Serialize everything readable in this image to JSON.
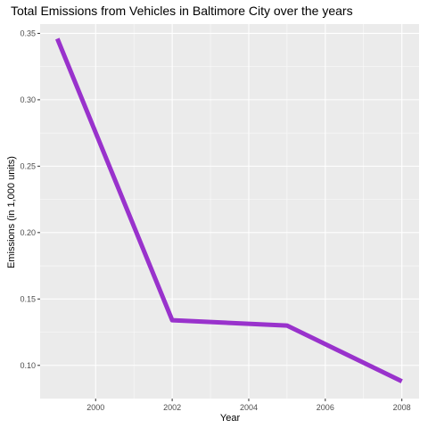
{
  "chart_data": {
    "type": "line",
    "title": "Total Emissions from Vehicles in Baltimore City over the years",
    "xlabel": "Year",
    "ylabel": "Emissions (in 1,000 units)",
    "x": [
      1999,
      2002,
      2005,
      2008
    ],
    "series": [
      {
        "values": [
          0.346,
          0.134,
          0.13,
          0.088
        ]
      }
    ],
    "xlim": [
      1998.55,
      2008.45
    ],
    "ylim": [
      0.075,
      0.357
    ],
    "xticks": [
      2000,
      2002,
      2004,
      2006,
      2008
    ],
    "xtick_labels": [
      "2000",
      "2002",
      "2004",
      "2006",
      "2008"
    ],
    "yticks": [
      0.1,
      0.15,
      0.2,
      0.25,
      0.3,
      0.35
    ],
    "ytick_labels": [
      "0.10",
      "0.15",
      "0.20",
      "0.25",
      "0.30",
      "0.35"
    ],
    "line_color": "#9932cc",
    "panel_background": "#ebebeb",
    "grid": true,
    "legend": "none"
  }
}
